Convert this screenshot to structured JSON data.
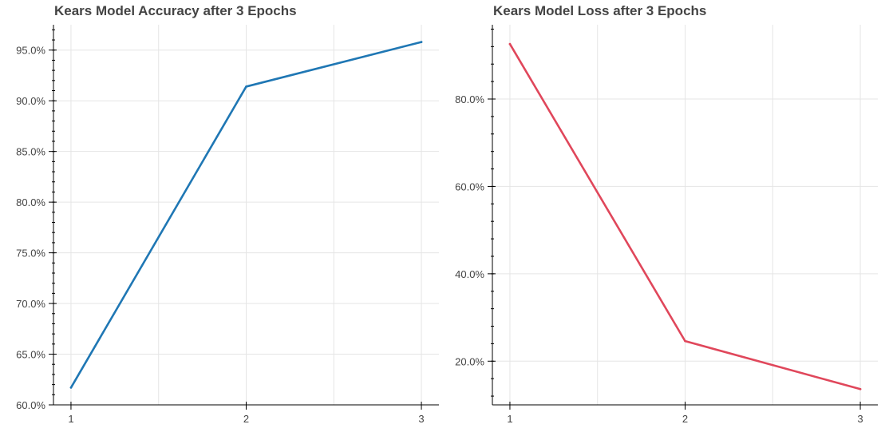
{
  "chart_data": [
    {
      "type": "line",
      "title": "Kears Model Accuracy after 3 Epochs",
      "xlabel": "",
      "ylabel": "",
      "x": [
        1,
        2,
        3
      ],
      "series": [
        {
          "name": "accuracy",
          "values": [
            61.7,
            91.4,
            95.8
          ],
          "color": "#1f77b4"
        }
      ],
      "xlim": [
        0.9,
        3.1
      ],
      "ylim": [
        60.0,
        97.5
      ],
      "xticks": [
        1,
        2,
        3
      ],
      "xtick_labels": [
        "1",
        "2",
        "3"
      ],
      "yticks": [
        60,
        65,
        70,
        75,
        80,
        85,
        90,
        95
      ],
      "ytick_labels": [
        "60.0%",
        "65.0%",
        "70.0%",
        "75.0%",
        "80.0%",
        "85.0%",
        "90.0%",
        "95.0%"
      ],
      "yminor_step": 1,
      "grid": true
    },
    {
      "type": "line",
      "title": "Kears Model Loss after 3 Epochs",
      "xlabel": "",
      "ylabel": "",
      "x": [
        1,
        2,
        3
      ],
      "series": [
        {
          "name": "loss",
          "values": [
            92.6,
            24.6,
            13.6
          ],
          "color": "#e0475b"
        }
      ],
      "xlim": [
        0.9,
        3.1
      ],
      "ylim": [
        10.0,
        97.0
      ],
      "xticks": [
        1,
        2,
        3
      ],
      "xtick_labels": [
        "1",
        "2",
        "3"
      ],
      "yticks": [
        20,
        40,
        60,
        80
      ],
      "ytick_labels": [
        "20.0%",
        "40.0%",
        "60.0%",
        "80.0%"
      ],
      "yminor_step": 4,
      "grid": true
    }
  ]
}
